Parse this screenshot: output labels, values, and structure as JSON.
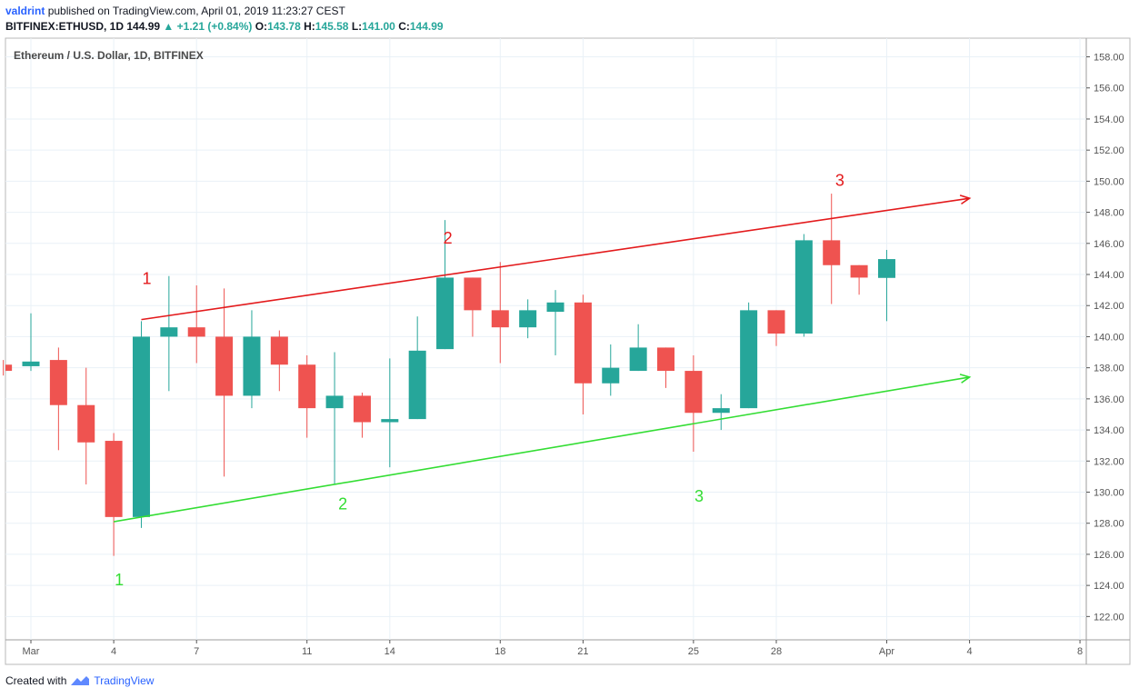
{
  "header": {
    "user": "valdrint",
    "published": "published on TradingView.com, April 01, 2019 11:23:27 CEST",
    "symbol": "BITFINEX:ETHUSD, 1D",
    "last": "144.99",
    "change_arrow": "▲",
    "change": "+1.21 (+0.84%)",
    "o_label": "O:",
    "o": "143.78",
    "h_label": "H:",
    "h": "145.58",
    "l_label": "L:",
    "l": "141.00",
    "c_label": "C:",
    "c": "144.99"
  },
  "footer": {
    "created": "Created with",
    "brand": "TradingView",
    "logo_icon": "tradingview-logo-icon"
  },
  "colors": {
    "up": "#26a69a",
    "down": "#ef5350",
    "resistance": "#e31a1c",
    "support": "#33dd33",
    "grid": "#e9f1f7",
    "axis": "#555555"
  },
  "chart_data": {
    "type": "candlestick",
    "title": "Ethereum / U.S. Dollar, 1D, BITFINEX",
    "ylim": [
      120.5,
      159.2
    ],
    "y_ticks": [
      "122.00",
      "124.00",
      "126.00",
      "128.00",
      "130.00",
      "132.00",
      "134.00",
      "136.00",
      "138.00",
      "140.00",
      "142.00",
      "144.00",
      "146.00",
      "148.00",
      "150.00",
      "152.00",
      "154.00",
      "156.00",
      "158.00"
    ],
    "x_ticks": [
      {
        "label": "Mar",
        "day": 1
      },
      {
        "label": "4",
        "day": 4
      },
      {
        "label": "7",
        "day": 7
      },
      {
        "label": "11",
        "day": 11
      },
      {
        "label": "14",
        "day": 14
      },
      {
        "label": "18",
        "day": 18
      },
      {
        "label": "21",
        "day": 21
      },
      {
        "label": "25",
        "day": 25
      },
      {
        "label": "28",
        "day": 28
      },
      {
        "label": "Apr",
        "day": 32
      },
      {
        "label": "4",
        "day": 35
      },
      {
        "label": "8",
        "day": 39
      }
    ],
    "candles": [
      {
        "day": 0,
        "o": 138.2,
        "h": 138.5,
        "l": 137.5,
        "c": 137.8
      },
      {
        "day": 1,
        "o": 138.1,
        "h": 141.5,
        "l": 137.8,
        "c": 138.4
      },
      {
        "day": 2,
        "o": 138.5,
        "h": 139.3,
        "l": 132.7,
        "c": 135.6
      },
      {
        "day": 3,
        "o": 135.6,
        "h": 138.0,
        "l": 130.5,
        "c": 133.2
      },
      {
        "day": 4,
        "o": 133.3,
        "h": 133.8,
        "l": 125.9,
        "c": 128.4
      },
      {
        "day": 5,
        "o": 128.4,
        "h": 141.0,
        "l": 127.7,
        "c": 140.0
      },
      {
        "day": 6,
        "o": 140.0,
        "h": 143.9,
        "l": 136.5,
        "c": 140.6
      },
      {
        "day": 7,
        "o": 140.6,
        "h": 143.3,
        "l": 138.3,
        "c": 140.0
      },
      {
        "day": 8,
        "o": 140.0,
        "h": 143.1,
        "l": 131.0,
        "c": 136.2
      },
      {
        "day": 9,
        "o": 136.2,
        "h": 141.7,
        "l": 135.4,
        "c": 140.0
      },
      {
        "day": 10,
        "o": 140.0,
        "h": 140.4,
        "l": 136.5,
        "c": 138.2
      },
      {
        "day": 11,
        "o": 138.2,
        "h": 138.8,
        "l": 133.5,
        "c": 135.4
      },
      {
        "day": 12,
        "o": 135.4,
        "h": 139.0,
        "l": 130.5,
        "c": 136.2
      },
      {
        "day": 13,
        "o": 136.2,
        "h": 136.4,
        "l": 133.5,
        "c": 134.5
      },
      {
        "day": 14,
        "o": 134.5,
        "h": 138.6,
        "l": 131.6,
        "c": 134.7
      },
      {
        "day": 15,
        "o": 134.7,
        "h": 141.3,
        "l": 134.7,
        "c": 139.1
      },
      {
        "day": 16,
        "o": 139.2,
        "h": 147.5,
        "l": 139.2,
        "c": 143.8
      },
      {
        "day": 17,
        "o": 143.8,
        "h": 143.8,
        "l": 140.0,
        "c": 141.7
      },
      {
        "day": 18,
        "o": 141.7,
        "h": 144.8,
        "l": 138.3,
        "c": 140.6
      },
      {
        "day": 19,
        "o": 140.6,
        "h": 142.4,
        "l": 139.9,
        "c": 141.7
      },
      {
        "day": 20,
        "o": 141.6,
        "h": 143.0,
        "l": 138.8,
        "c": 142.2
      },
      {
        "day": 21,
        "o": 142.2,
        "h": 142.7,
        "l": 135.0,
        "c": 137.0
      },
      {
        "day": 22,
        "o": 137.0,
        "h": 139.5,
        "l": 136.2,
        "c": 138.0
      },
      {
        "day": 23,
        "o": 137.8,
        "h": 140.8,
        "l": 137.8,
        "c": 139.3
      },
      {
        "day": 24,
        "o": 139.3,
        "h": 139.3,
        "l": 136.7,
        "c": 137.8
      },
      {
        "day": 25,
        "o": 137.8,
        "h": 138.8,
        "l": 132.6,
        "c": 135.1
      },
      {
        "day": 26,
        "o": 135.1,
        "h": 136.3,
        "l": 134.0,
        "c": 135.4
      },
      {
        "day": 27,
        "o": 135.4,
        "h": 142.2,
        "l": 135.4,
        "c": 141.7
      },
      {
        "day": 28,
        "o": 141.7,
        "h": 141.7,
        "l": 139.4,
        "c": 140.2
      },
      {
        "day": 29,
        "o": 140.2,
        "h": 146.6,
        "l": 140.0,
        "c": 146.2
      },
      {
        "day": 30,
        "o": 146.2,
        "h": 149.2,
        "l": 142.1,
        "c": 144.6
      },
      {
        "day": 31,
        "o": 144.6,
        "h": 144.6,
        "l": 142.7,
        "c": 143.8
      },
      {
        "day": 32,
        "o": 143.78,
        "h": 145.58,
        "l": 141.0,
        "c": 144.99
      }
    ],
    "trendlines": [
      {
        "name": "resistance",
        "color": "#e31a1c",
        "from": {
          "day": 5,
          "price": 141.1
        },
        "to": {
          "day": 35,
          "price": 148.9
        }
      },
      {
        "name": "support",
        "color": "#33dd33",
        "from": {
          "day": 4,
          "price": 128.1
        },
        "to": {
          "day": 35,
          "price": 137.4
        }
      }
    ],
    "annotations": [
      {
        "text": "1",
        "color": "red",
        "day": 5.2,
        "price": 143.4
      },
      {
        "text": "2",
        "color": "red",
        "day": 16.1,
        "price": 146.0
      },
      {
        "text": "3",
        "color": "red",
        "day": 30.3,
        "price": 149.7
      },
      {
        "text": "1",
        "color": "green",
        "day": 4.2,
        "price": 124.0
      },
      {
        "text": "2",
        "color": "green",
        "day": 12.3,
        "price": 128.9
      },
      {
        "text": "3",
        "color": "green",
        "day": 25.2,
        "price": 129.4
      }
    ]
  }
}
